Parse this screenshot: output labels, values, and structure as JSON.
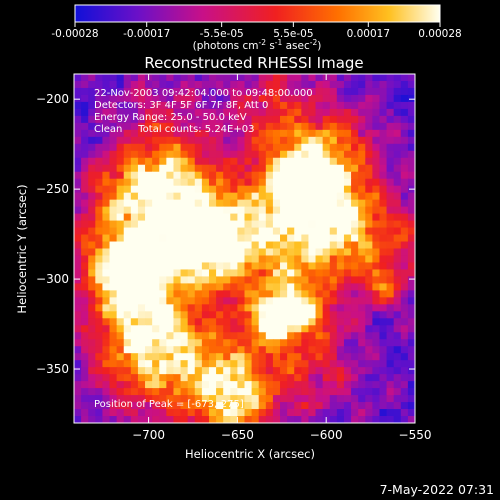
{
  "colorbar": {
    "tick_labels": [
      "-0.00028",
      "-0.00017",
      "-5.5e-05",
      "5.5e-05",
      "0.00017",
      "0.00028"
    ],
    "tick_values": [
      -0.00028,
      -0.00017,
      -5.5e-05,
      5.5e-05,
      0.00017,
      0.00028
    ],
    "range": [
      -0.00028,
      0.00028
    ],
    "unit_main": "(photons cm",
    "unit_sup1": "-2",
    "unit_mid": " s",
    "unit_sup2": "-1",
    "unit_end": " asec",
    "unit_sup3": "-2",
    "unit_close": ")",
    "stops": [
      "#1010d8",
      "#6a10c8",
      "#c81088",
      "#f02020",
      "#ff7000",
      "#ffc020",
      "#fffff0"
    ]
  },
  "chart_data": {
    "type": "heatmap",
    "title": "Reconstructed RHESSI Image",
    "xlabel": "Heliocentric X (arcsec)",
    "ylabel": "Heliocentric Y (arcsec)",
    "xlim": [
      -742,
      -550
    ],
    "ylim": [
      -380,
      -186
    ],
    "x_ticks": [
      -700,
      -650,
      -600,
      -550
    ],
    "x_tick_labels": [
      "−700",
      "−650",
      "−600",
      "−550"
    ],
    "y_ticks": [
      -200,
      -250,
      -300,
      -350
    ],
    "y_tick_labels": [
      "−200",
      "−250",
      "−300",
      "−350"
    ],
    "grid": false,
    "annotations": [
      "22-Nov-2003 09:42:04.000 to 09:48:00.000",
      "Detectors: 3F 4F 5F 6F 7F 8F, Att 0",
      "Energy Range: 25.0 - 50.0 keV",
      "Clean     Total counts: 5.24E+03"
    ],
    "peak_label": "Position of Peak = [-673,-275]",
    "peak": [
      -673,
      -275
    ]
  },
  "footer": {
    "timestamp": "7-May-2022 07:31"
  }
}
